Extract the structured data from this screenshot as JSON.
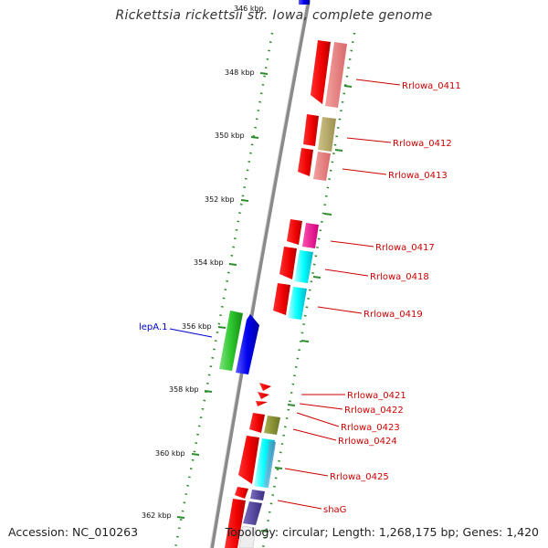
{
  "title": "Rickettsia rickettsii str. Iowa, complete genome",
  "footer": {
    "accession": "Accession: NC_010263",
    "topology": "Topology: circular; Length: 1,268,175 bp; Genes: 1,420"
  },
  "colors": {
    "backbone": "#8a8a8a",
    "tick": "#2e8b2e",
    "label_red": "#cc0000",
    "label_blue": "#0000cc"
  },
  "scale": {
    "unit": "kbp",
    "ticks": [
      "346 kbp",
      "348 kbp",
      "350 kbp",
      "352 kbp",
      "354 kbp",
      "356 kbp",
      "358 kbp",
      "360 kbp",
      "362 kbp"
    ]
  },
  "gene_labels": [
    {
      "text": "Rrlowa_0411",
      "color": "red"
    },
    {
      "text": "Rrlowa_0412",
      "color": "red"
    },
    {
      "text": "Rrlowa_0413",
      "color": "red"
    },
    {
      "text": "Rrlowa_0417",
      "color": "red"
    },
    {
      "text": "Rrlowa_0418",
      "color": "red"
    },
    {
      "text": "Rrlowa_0419",
      "color": "red"
    },
    {
      "text": "lepA.1",
      "color": "blue"
    },
    {
      "text": "Rrlowa_0421",
      "color": "red"
    },
    {
      "text": "Rrlowa_0422",
      "color": "red"
    },
    {
      "text": "Rrlowa_0423",
      "color": "red"
    },
    {
      "text": "Rrlowa_0424",
      "color": "red"
    },
    {
      "text": "Rrlowa_0425",
      "color": "red"
    },
    {
      "text": "shaG",
      "color": "red"
    }
  ]
}
